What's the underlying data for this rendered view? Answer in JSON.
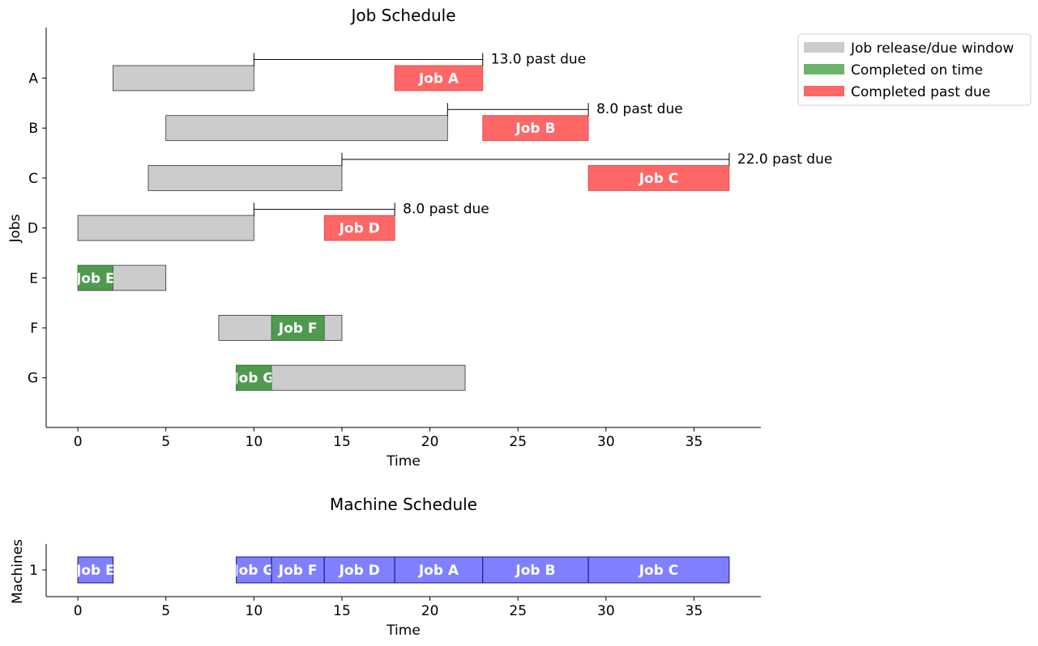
{
  "chart_data": [
    {
      "type": "gantt",
      "title": "Job Schedule",
      "xlabel": "Time",
      "ylabel": "Jobs",
      "xlim": [
        -1.8,
        38.8
      ],
      "xticks": [
        0,
        5,
        10,
        15,
        20,
        25,
        30,
        35
      ],
      "categories": [
        "A",
        "B",
        "C",
        "D",
        "E",
        "F",
        "G"
      ],
      "windows": [
        {
          "job": "A",
          "release": 2,
          "due": 10
        },
        {
          "job": "B",
          "release": 5,
          "due": 21
        },
        {
          "job": "C",
          "release": 4,
          "due": 15
        },
        {
          "job": "D",
          "release": 0,
          "due": 10
        },
        {
          "job": "E",
          "release": 0,
          "due": 5
        },
        {
          "job": "F",
          "release": 8,
          "due": 15
        },
        {
          "job": "G",
          "release": 9,
          "due": 22
        }
      ],
      "jobs": [
        {
          "job": "A",
          "label": "Job A",
          "start": 18,
          "end": 23,
          "status": "late",
          "past_due": 13.0,
          "annotation": "13.0 past due"
        },
        {
          "job": "B",
          "label": "Job B",
          "start": 23,
          "end": 29,
          "status": "late",
          "past_due": 8.0,
          "annotation": "8.0 past due"
        },
        {
          "job": "C",
          "label": "Job C",
          "start": 29,
          "end": 37,
          "status": "late",
          "past_due": 22.0,
          "annotation": "22.0 past due"
        },
        {
          "job": "D",
          "label": "Job D",
          "start": 14,
          "end": 18,
          "status": "late",
          "past_due": 8.0,
          "annotation": "8.0 past due"
        },
        {
          "job": "E",
          "label": "Job E",
          "start": 0,
          "end": 2,
          "status": "ontime"
        },
        {
          "job": "F",
          "label": "Job F",
          "start": 11,
          "end": 14,
          "status": "ontime"
        },
        {
          "job": "G",
          "label": "Job G",
          "start": 9,
          "end": 11,
          "status": "ontime"
        }
      ],
      "legend": {
        "position": "upper-right-outside",
        "entries": [
          {
            "label": "Job release/due window",
            "color": "#cccccc"
          },
          {
            "label": "Completed on time",
            "color": "#6ab46a"
          },
          {
            "label": "Completed past due",
            "color": "#ff6666"
          }
        ]
      }
    },
    {
      "type": "gantt",
      "title": "Machine Schedule",
      "xlabel": "Time",
      "ylabel": "Machines",
      "xlim": [
        -1.8,
        38.8
      ],
      "xticks": [
        0,
        5,
        10,
        15,
        20,
        25,
        30,
        35
      ],
      "categories": [
        "1"
      ],
      "tasks": [
        {
          "machine": "1",
          "label": "Job E",
          "start": 0,
          "end": 2
        },
        {
          "machine": "1",
          "label": "Job G",
          "start": 9,
          "end": 11
        },
        {
          "machine": "1",
          "label": "Job F",
          "start": 11,
          "end": 14
        },
        {
          "machine": "1",
          "label": "Job D",
          "start": 14,
          "end": 18
        },
        {
          "machine": "1",
          "label": "Job A",
          "start": 18,
          "end": 23
        },
        {
          "machine": "1",
          "label": "Job B",
          "start": 23,
          "end": 29
        },
        {
          "machine": "1",
          "label": "Job C",
          "start": 29,
          "end": 37
        }
      ]
    }
  ],
  "colors": {
    "window": "#cccccc",
    "ontime": "#4f9a4f",
    "late": "#ff6666",
    "machine": "#8080ff",
    "machine_edge": "#10108a"
  }
}
